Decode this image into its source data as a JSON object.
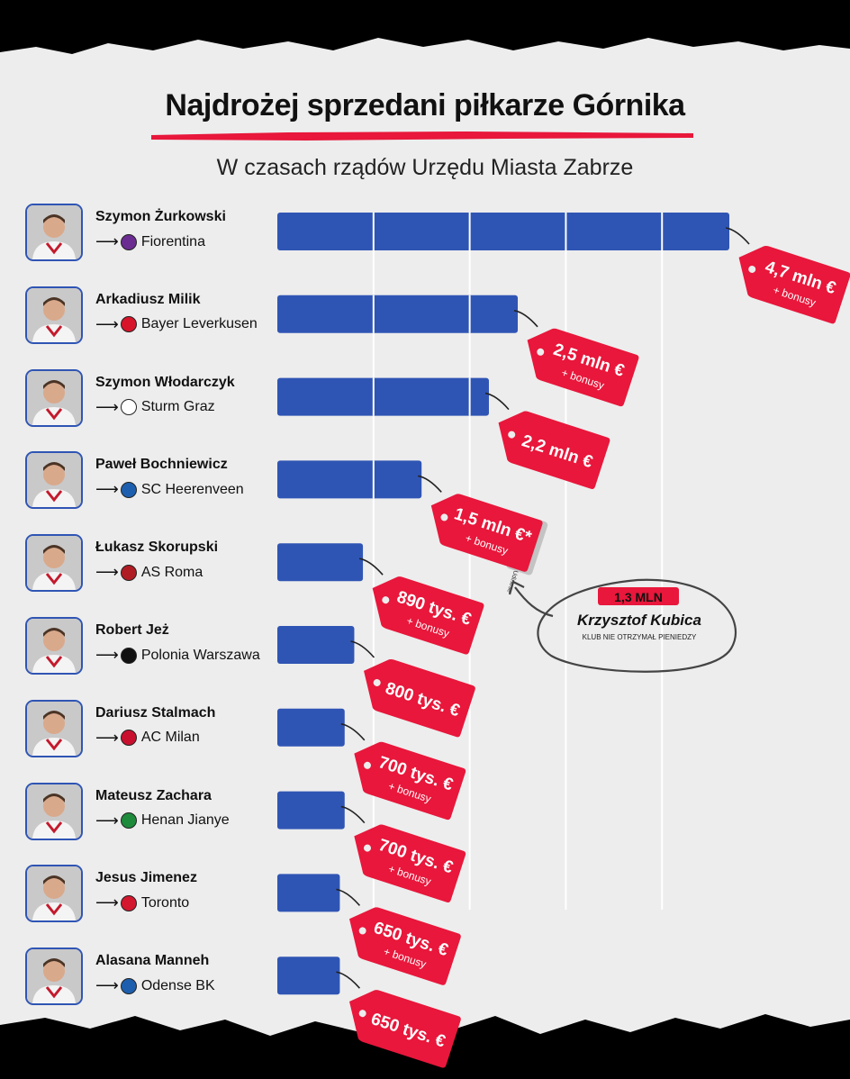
{
  "title": "Najdrożej sprzedani piłkarze Górnika",
  "subtitle": "W czasach rządów Urzędu Miasta Zabrze",
  "colors": {
    "bar": "#2f55b4",
    "tag": "#e8173b",
    "background": "#ededed"
  },
  "players": [
    {
      "name": "Szymon Żurkowski",
      "club": "Fiorentina",
      "club_icon": "fiorentina-icon",
      "club_color": "#6b2c91",
      "price_label": "4,7 mln €",
      "bonus": "+ bonusy"
    },
    {
      "name": "Arkadiusz Milik",
      "club": "Bayer Leverkusen",
      "club_icon": "bayer-leverkusen-icon",
      "club_color": "#d7142a",
      "price_label": "2,5 mln €",
      "bonus": "+ bonusy"
    },
    {
      "name": "Szymon Włodarczyk",
      "club": "Sturm Graz",
      "club_icon": "sturm-graz-icon",
      "club_color": "#ffffff",
      "price_label": "2,2 mln €",
      "bonus": ""
    },
    {
      "name": "Paweł Bochniewicz",
      "club": "SC Heerenveen",
      "club_icon": "sc-heerenveen-icon",
      "club_color": "#1d5fae",
      "price_label": "1,5 mln €*",
      "bonus": "+ bonusy",
      "note": "*połowa trafiła do Udinese"
    },
    {
      "name": "Łukasz Skorupski",
      "club": "AS Roma",
      "club_icon": "as-roma-icon",
      "club_color": "#b01c24",
      "price_label": "890 tys. €",
      "bonus": "+ bonusy"
    },
    {
      "name": "Robert Jeż",
      "club": "Polonia Warszawa",
      "club_icon": "polonia-warszawa-icon",
      "club_color": "#111111",
      "price_label": "800 tys. €",
      "bonus": ""
    },
    {
      "name": "Dariusz Stalmach",
      "club": "AC Milan",
      "club_icon": "ac-milan-icon",
      "club_color": "#c8102e",
      "price_label": "700 tys. €",
      "bonus": "+ bonusy"
    },
    {
      "name": "Mateusz Zachara",
      "club": "Henan Jianye",
      "club_icon": "henan-jianye-icon",
      "club_color": "#1e8a3c",
      "price_label": "700 tys. €",
      "bonus": "+ bonusy"
    },
    {
      "name": "Jesus Jimenez",
      "club": "Toronto",
      "club_icon": "toronto-icon",
      "club_color": "#d3172e",
      "price_label": "650 tys. €",
      "bonus": "+ bonusy"
    },
    {
      "name": "Alasana Manneh",
      "club": "Odense BK",
      "club_icon": "odense-bk-icon",
      "club_color": "#1d5fae",
      "price_label": "650 tys. €",
      "bonus": ""
    }
  ],
  "chart_data": {
    "type": "bar",
    "orientation": "horizontal",
    "categories": [
      "Szymon Żurkowski",
      "Arkadiusz Milik",
      "Szymon Włodarczyk",
      "Paweł Bochniewicz",
      "Łukasz Skorupski",
      "Robert Jeż",
      "Dariusz Stalmach",
      "Mateusz Zachara",
      "Jesus Jimenez",
      "Alasana Manneh"
    ],
    "values": [
      4.7,
      2.5,
      2.2,
      1.5,
      0.89,
      0.8,
      0.7,
      0.7,
      0.65,
      0.65
    ],
    "unit": "mln €",
    "xlim": [
      0,
      4.7
    ],
    "gridlines": [
      1,
      2,
      3,
      4
    ]
  },
  "annotation": {
    "amount": "1,3 MLN",
    "name": "Krzysztof Kubica",
    "note": "KLUB NIE OTRZYMAŁ PIENIEDZY"
  }
}
